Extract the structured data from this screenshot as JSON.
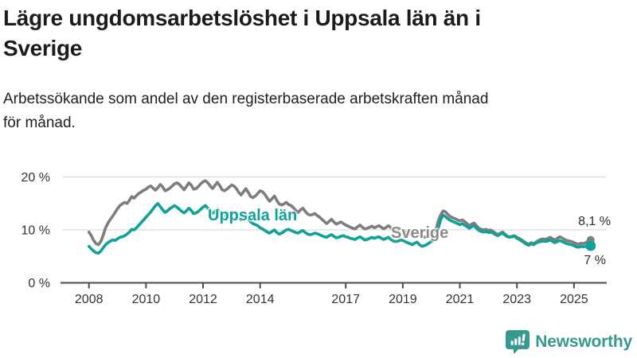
{
  "title": {
    "line1": "Lägre ungdomsarbetslöshet i Uppsala län än i",
    "line2": "Sverige"
  },
  "subtitle": {
    "line1": "Arbetssökande som andel av den registerbaserade arbetskraften månad",
    "line2": "för månad."
  },
  "chart_data": {
    "type": "line",
    "x_unit": "month",
    "start_year": 2008,
    "end_point": "2025-08",
    "x_tick_years": [
      2008,
      2010,
      2012,
      2014,
      2017,
      2019,
      2021,
      2023,
      2025
    ],
    "x_tick_labels": [
      "2008",
      "2010",
      "2012",
      "2014",
      "2017",
      "2019",
      "2021",
      "2023",
      "2025"
    ],
    "y_ticks": [
      {
        "value": 0,
        "label": "0 %"
      },
      {
        "value": 10,
        "label": "10 %"
      },
      {
        "value": 20,
        "label": "20 %"
      }
    ],
    "ylim": [
      0,
      21
    ],
    "grid": "horizontal",
    "series": [
      {
        "name": "Sverige",
        "slug": "sverige",
        "color": "#7d7d7d",
        "values": [
          9.6,
          8.9,
          8.0,
          7.4,
          7.2,
          7.8,
          9.0,
          10.4,
          11.3,
          12.0,
          12.6,
          13.3,
          14.0,
          14.6,
          14.9,
          15.2,
          15.0,
          15.6,
          16.3,
          16.0,
          16.5,
          16.9,
          17.2,
          17.5,
          17.7,
          18.1,
          18.3,
          17.9,
          17.5,
          18.0,
          18.6,
          18.1,
          17.4,
          17.6,
          17.9,
          18.3,
          18.7,
          18.9,
          18.6,
          18.1,
          17.6,
          18.2,
          18.9,
          18.5,
          17.7,
          17.8,
          18.2,
          18.7,
          19.1,
          19.3,
          18.9,
          18.3,
          17.8,
          18.4,
          19.0,
          18.4,
          17.6,
          17.4,
          17.7,
          18.1,
          18.5,
          18.3,
          17.8,
          17.1,
          16.6,
          17.2,
          17.8,
          17.1,
          16.3,
          16.1,
          16.4,
          16.9,
          17.4,
          17.2,
          16.7,
          16.0,
          15.4,
          15.9,
          16.4,
          15.6,
          14.9,
          14.7,
          14.9,
          15.2,
          14.8,
          14.6,
          14.2,
          13.7,
          13.3,
          13.8,
          14.1,
          13.5,
          13.0,
          12.8,
          12.9,
          13.1,
          12.7,
          12.4,
          12.0,
          11.6,
          11.2,
          11.6,
          12.0,
          11.5,
          11.1,
          11.3,
          11.5,
          11.2,
          10.9,
          10.7,
          10.5,
          10.3,
          10.2,
          10.6,
          10.9,
          10.5,
          10.2,
          10.3,
          10.5,
          10.7,
          10.4,
          10.6,
          10.8,
          10.5,
          10.2,
          10.5,
          10.8,
          10.4,
          10.0,
          9.9,
          10.0,
          10.2,
          9.9,
          9.7,
          9.5,
          9.3,
          9.1,
          9.4,
          9.7,
          9.2,
          8.8,
          8.6,
          8.8,
          9.1,
          9.4,
          9.6,
          10.2,
          11.8,
          12.9,
          13.6,
          13.4,
          12.9,
          12.5,
          12.3,
          12.1,
          11.9,
          11.7,
          11.9,
          11.6,
          11.2,
          10.8,
          11.1,
          11.3,
          10.8,
          10.3,
          10.1,
          10.0,
          10.1,
          9.9,
          10.0,
          9.7,
          9.4,
          9.1,
          9.4,
          9.6,
          9.2,
          8.8,
          8.7,
          8.8,
          8.9,
          8.6,
          8.4,
          8.1,
          7.8,
          7.5,
          7.3,
          7.6,
          7.4,
          7.7,
          8.0,
          8.2,
          8.3,
          8.2,
          8.4,
          8.6,
          8.3,
          8.1,
          8.4,
          8.7,
          8.5,
          8.2,
          8.0,
          7.9,
          7.8,
          7.6,
          7.4,
          7.3,
          7.5,
          7.4,
          7.6,
          7.9,
          8.1
        ]
      },
      {
        "name": "Uppsala län",
        "slug": "uppsala",
        "color": "#10a296",
        "values": [
          6.9,
          6.4,
          6.0,
          5.7,
          5.6,
          6.0,
          6.6,
          7.2,
          7.6,
          7.9,
          8.1,
          8.0,
          8.3,
          8.6,
          8.7,
          8.9,
          9.2,
          9.6,
          10.1,
          10.0,
          10.4,
          10.9,
          11.4,
          11.9,
          12.4,
          12.9,
          13.4,
          14.0,
          14.6,
          15.0,
          14.4,
          13.8,
          13.3,
          13.6,
          14.0,
          14.3,
          14.6,
          14.3,
          13.9,
          13.5,
          13.2,
          13.6,
          14.1,
          13.7,
          13.1,
          13.2,
          13.5,
          13.9,
          14.3,
          14.6,
          14.1,
          13.6,
          13.1,
          13.5,
          13.9,
          13.4,
          12.8,
          12.6,
          12.8,
          13.1,
          13.4,
          13.2,
          12.8,
          12.3,
          11.9,
          12.3,
          12.7,
          12.1,
          11.5,
          11.2,
          11.0,
          10.8,
          10.4,
          10.2,
          9.9,
          9.6,
          9.4,
          9.7,
          10.0,
          9.5,
          9.2,
          9.4,
          9.7,
          10.0,
          10.1,
          9.9,
          9.7,
          9.5,
          9.4,
          9.7,
          9.9,
          9.5,
          9.2,
          9.1,
          9.2,
          9.4,
          9.3,
          9.1,
          8.9,
          8.7,
          8.6,
          8.9,
          9.1,
          8.8,
          8.5,
          8.6,
          8.8,
          8.9,
          8.7,
          8.6,
          8.4,
          8.3,
          8.2,
          8.5,
          8.7,
          8.4,
          8.1,
          8.2,
          8.4,
          8.6,
          8.4,
          8.6,
          8.7,
          8.4,
          8.2,
          8.4,
          8.6,
          8.2,
          7.9,
          7.8,
          7.9,
          8.1,
          8.0,
          7.8,
          7.6,
          7.4,
          7.2,
          7.5,
          7.7,
          7.2,
          6.9,
          7.0,
          7.2,
          7.5,
          7.8,
          8.0,
          8.6,
          10.5,
          12.0,
          12.8,
          12.5,
          12.1,
          11.8,
          11.6,
          11.4,
          11.2,
          11.0,
          11.2,
          10.9,
          10.6,
          10.3,
          10.6,
          10.8,
          10.3,
          9.9,
          9.7,
          9.6,
          9.7,
          9.5,
          9.6,
          9.4,
          9.1,
          8.9,
          9.2,
          9.4,
          9.0,
          8.7,
          8.6,
          8.7,
          8.8,
          8.4,
          8.2,
          7.9,
          7.6,
          7.3,
          7.1,
          7.4,
          7.2,
          7.5,
          7.7,
          7.8,
          7.9,
          7.8,
          7.9,
          8.1,
          7.8,
          7.6,
          7.8,
          8.0,
          7.8,
          7.6,
          7.4,
          7.3,
          7.2,
          7.0,
          6.8,
          6.7,
          6.9,
          6.8,
          6.9,
          7.1,
          7.0
        ]
      }
    ],
    "series_labels": {
      "uppsala": "Uppsala län",
      "sverige": "Sverige"
    },
    "end_labels": {
      "sverige": "8,1 %",
      "uppsala": "7 %"
    },
    "legend_position": "inline-on-lines"
  },
  "footer": {
    "brand": "Newsworthy"
  },
  "colors": {
    "teal": "#10a296",
    "gray": "#7d7d7d",
    "logo_teal": "#35998f",
    "axis": "#4a4a4a",
    "gridline": "#dcdcdc",
    "tick_text": "#333333"
  }
}
